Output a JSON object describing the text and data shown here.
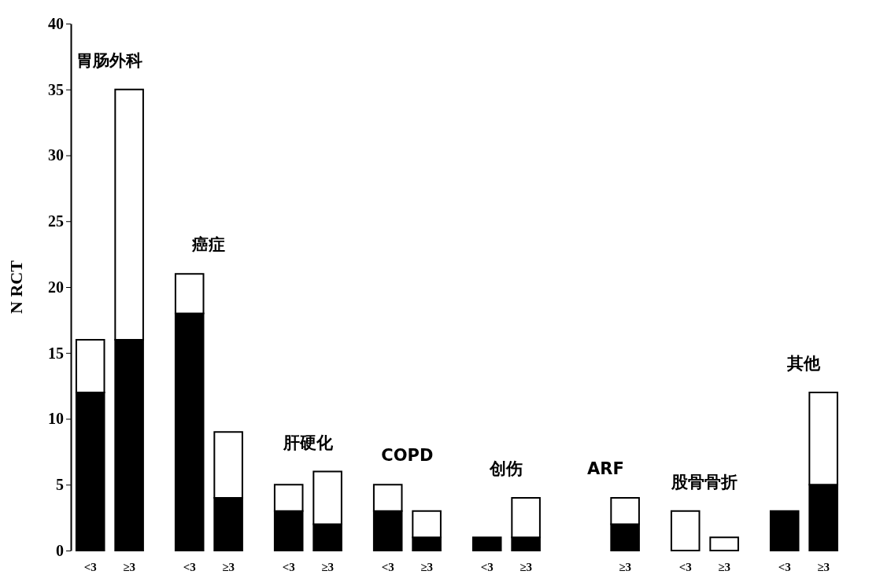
{
  "chart_data": {
    "type": "bar",
    "stacked": true,
    "ylabel": "N RCT",
    "categories": [
      "<3",
      "≥3",
      "<3",
      "≥3",
      "<3",
      "≥3",
      "<3",
      "≥3",
      "<3",
      "≥3",
      null,
      "≥3",
      "<3",
      "≥3",
      "<3",
      "≥3"
    ],
    "series": [
      {
        "color": "#000000",
        "values": [
          12,
          16,
          18,
          4,
          3,
          2,
          3,
          1,
          1,
          1,
          null,
          2,
          0,
          0,
          3,
          5
        ]
      },
      {
        "color": "#ffffff",
        "values": [
          4,
          19,
          3,
          5,
          2,
          4,
          2,
          2,
          0,
          3,
          null,
          2,
          3,
          1,
          0,
          7
        ]
      }
    ],
    "ylim": [
      0,
      40
    ],
    "yticks": [
      0,
      5,
      10,
      15,
      20,
      25,
      30,
      35,
      40
    ],
    "annotations": [
      "胃肠外科",
      "癌症",
      "肝硬化",
      "COPD",
      "创伤",
      "ARF",
      "股骨骨折",
      "其他"
    ]
  }
}
